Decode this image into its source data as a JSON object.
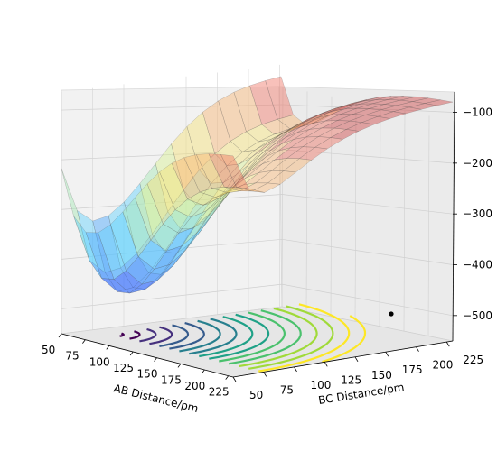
{
  "chart_data": {
    "type": "surface-3d",
    "title": "",
    "xlabel": "AB Distance/pm",
    "ylabel": "BC Distance/pm",
    "zlabel": "",
    "x_ticks": [
      "50",
      "75",
      "100",
      "125",
      "150",
      "175",
      "200",
      "225"
    ],
    "y_ticks": [
      "50",
      "75",
      "100",
      "125",
      "150",
      "175",
      "200",
      "225"
    ],
    "z_ticks": [
      "−100",
      "−200",
      "−300",
      "−400",
      "−500"
    ],
    "xlim": [
      50,
      230
    ],
    "ylim": [
      50,
      230
    ],
    "zlim": [
      -550,
      -60
    ],
    "surface_colormap": "jet (translucent)",
    "contour_colormap": "viridis",
    "minimum_energy": -510,
    "plateau_energy": -70,
    "marker": {
      "ab_distance": 65,
      "bc_distance": 230,
      "energy": -520,
      "color": "#000000"
    },
    "grid": true
  }
}
